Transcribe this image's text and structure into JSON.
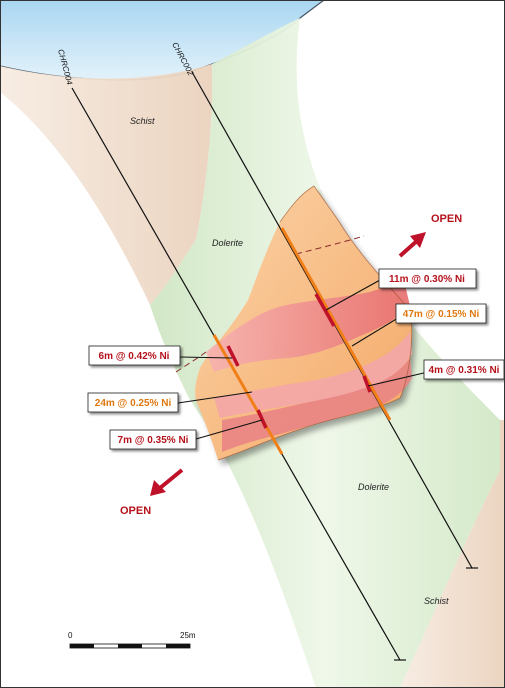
{
  "colors": {
    "sky": "#bfe0f5",
    "schist": "#f3e2d3",
    "dolerite": "#dff0d6",
    "mineral_zone": "#f9c088",
    "lode": "#ee8c8c",
    "drill_trace": "#111111",
    "intercept": "#c0112a",
    "ni_bearing_zone": "#f07f18",
    "callout_red_text": "#b5121b",
    "callout_orange_text": "#e0780f",
    "open_arrow": "#c0112a"
  },
  "drillholes": [
    {
      "id": "CHRC004"
    },
    {
      "id": "CHRC002"
    }
  ],
  "rock_labels": {
    "schist_top": "Schist",
    "dolerite_upper": "Dolerite",
    "dolerite_lower": "Dolerite",
    "schist_bottom": "Schist"
  },
  "intercepts": [
    {
      "text": "11m @ 0.30% Ni",
      "style": "red"
    },
    {
      "text": "47m @ 0.15% Ni",
      "style": "orange"
    },
    {
      "text": "6m @ 0.42% Ni",
      "style": "red"
    },
    {
      "text": "4m @ 0.31% Ni",
      "style": "red"
    },
    {
      "text": "24m @ 0.25% Ni",
      "style": "orange"
    },
    {
      "text": "7m @ 0.35% Ni",
      "style": "red"
    }
  ],
  "open_labels": {
    "upper": "OPEN",
    "lower": "OPEN"
  },
  "scale_bar": {
    "start": "0",
    "end": "25m"
  }
}
